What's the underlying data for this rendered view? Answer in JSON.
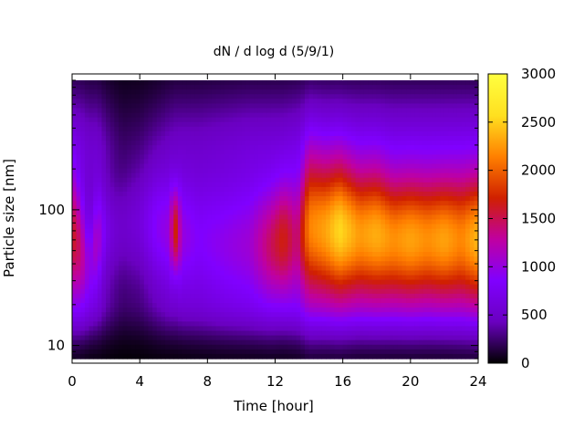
{
  "chart_data": {
    "type": "heatmap",
    "title": "dN / d log d (5/9/1)",
    "xlabel": "Time [hour]",
    "ylabel": "Particle size [nm]",
    "xlim": [
      0,
      24
    ],
    "ylim": [
      8,
      900
    ],
    "yscale": "log",
    "x_ticks": [
      0,
      4,
      8,
      12,
      16,
      20,
      24
    ],
    "x_tick_labels": [
      "0",
      "4",
      "8",
      "12",
      "16",
      "20",
      "24"
    ],
    "y_ticks": [
      10,
      100
    ],
    "y_tick_labels": [
      "10",
      "100"
    ],
    "colorbar": {
      "range": [
        0,
        3000
      ],
      "ticks": [
        0,
        500,
        1000,
        1500,
        2000,
        2500,
        3000
      ],
      "tick_labels": [
        "0",
        "500",
        "1000",
        "1500",
        "2000",
        "2500",
        "3000"
      ],
      "palette": [
        "#000000",
        "#6a00c0",
        "#8000ff",
        "#c000a0",
        "#d02000",
        "#ff8000",
        "#ffe020",
        "#ffff40"
      ]
    },
    "grid": false,
    "legend": "colorbar-right",
    "time_profile": [
      {
        "t": 0.0,
        "peak_nm": 65,
        "width": 0.32,
        "max": 1650,
        "bg": 700
      },
      {
        "t": 0.5,
        "peak_nm": 50,
        "width": 0.28,
        "max": 1400,
        "bg": 650
      },
      {
        "t": 1.0,
        "peak_nm": 35,
        "width": 0.22,
        "max": 900,
        "bg": 550
      },
      {
        "t": 1.5,
        "peak_nm": 60,
        "width": 0.25,
        "max": 1150,
        "bg": 550
      },
      {
        "t": 2.0,
        "peak_nm": 70,
        "width": 0.22,
        "max": 700,
        "bg": 400
      },
      {
        "t": 2.5,
        "peak_nm": 70,
        "width": 0.22,
        "max": 550,
        "bg": 300
      },
      {
        "t": 3.0,
        "peak_nm": 75,
        "width": 0.25,
        "max": 500,
        "bg": 230
      },
      {
        "t": 4.0,
        "peak_nm": 80,
        "width": 0.28,
        "max": 600,
        "bg": 250
      },
      {
        "t": 5.0,
        "peak_nm": 75,
        "width": 0.3,
        "max": 900,
        "bg": 350
      },
      {
        "t": 5.7,
        "peak_nm": 70,
        "width": 0.28,
        "max": 1000,
        "bg": 450
      },
      {
        "t": 6.1,
        "peak_nm": 70,
        "width": 0.22,
        "max": 1750,
        "bg": 500
      },
      {
        "t": 6.5,
        "peak_nm": 65,
        "width": 0.28,
        "max": 1000,
        "bg": 500
      },
      {
        "t": 7.5,
        "peak_nm": 60,
        "width": 0.3,
        "max": 850,
        "bg": 500
      },
      {
        "t": 9.0,
        "peak_nm": 55,
        "width": 0.3,
        "max": 950,
        "bg": 550
      },
      {
        "t": 10.5,
        "peak_nm": 55,
        "width": 0.3,
        "max": 1050,
        "bg": 600
      },
      {
        "t": 11.7,
        "peak_nm": 55,
        "width": 0.3,
        "max": 1450,
        "bg": 600
      },
      {
        "t": 12.5,
        "peak_nm": 60,
        "width": 0.3,
        "max": 1700,
        "bg": 600
      },
      {
        "t": 13.3,
        "peak_nm": 60,
        "width": 0.32,
        "max": 1350,
        "bg": 650
      },
      {
        "t": 14.0,
        "peak_nm": 75,
        "width": 0.38,
        "max": 2150,
        "bg": 700
      },
      {
        "t": 15.0,
        "peak_nm": 70,
        "width": 0.36,
        "max": 2300,
        "bg": 700
      },
      {
        "t": 15.8,
        "peak_nm": 70,
        "width": 0.36,
        "max": 2550,
        "bg": 700
      },
      {
        "t": 17.0,
        "peak_nm": 65,
        "width": 0.34,
        "max": 2250,
        "bg": 700
      },
      {
        "t": 18.0,
        "peak_nm": 65,
        "width": 0.34,
        "max": 2350,
        "bg": 700
      },
      {
        "t": 19.0,
        "peak_nm": 60,
        "width": 0.33,
        "max": 2200,
        "bg": 680
      },
      {
        "t": 20.0,
        "peak_nm": 60,
        "width": 0.33,
        "max": 2300,
        "bg": 680
      },
      {
        "t": 21.0,
        "peak_nm": 60,
        "width": 0.33,
        "max": 2200,
        "bg": 680
      },
      {
        "t": 22.0,
        "peak_nm": 60,
        "width": 0.33,
        "max": 2300,
        "bg": 680
      },
      {
        "t": 23.0,
        "peak_nm": 60,
        "width": 0.34,
        "max": 2150,
        "bg": 680
      },
      {
        "t": 24.0,
        "peak_nm": 60,
        "width": 0.34,
        "max": 2400,
        "bg": 680
      }
    ]
  }
}
